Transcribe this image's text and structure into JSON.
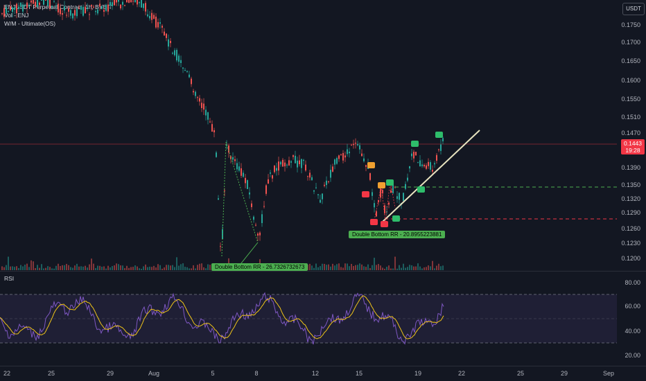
{
  "legend": {
    "title": "ENJUSDT Perpetual Contract, 1h, BYBIT",
    "volume": "Vol - ENJ",
    "indicator": "W/M - Ultimate(OS)"
  },
  "currency": "USDT",
  "price_tag": {
    "price": "0.1443",
    "countdown": "19:28"
  },
  "price_axis": [
    "0.1750",
    "0.1700",
    "0.1650",
    "0.1600",
    "0.1550",
    "0.1510",
    "0.1470",
    "0.1390",
    "0.1350",
    "0.1320",
    "0.1290",
    "0.1260",
    "0.1230",
    "0.1200"
  ],
  "rsi": {
    "label": "RSI",
    "axis": [
      "80.00",
      "60.00",
      "40.00",
      "20.00"
    ]
  },
  "time_axis": [
    "22",
    "25",
    "29",
    "Aug",
    "5",
    "8",
    "12",
    "15",
    "19",
    "22",
    "25",
    "29",
    "Sep"
  ],
  "annotations": {
    "rr1": "Double Bottom RR - 26.7326732673",
    "rr2": "Double Bottom RR - 20.8955223881"
  },
  "colors": {
    "up": "#26a69a",
    "down": "#ef5350",
    "price_line": "#f23645",
    "rsi_line": "#7e57c2",
    "rsi_ma": "#f0c419",
    "trendline": "#e8e4c0",
    "green_signal": "#2ebd6b",
    "orange_signal": "#f0a030",
    "red_signal": "#f23645"
  }
}
